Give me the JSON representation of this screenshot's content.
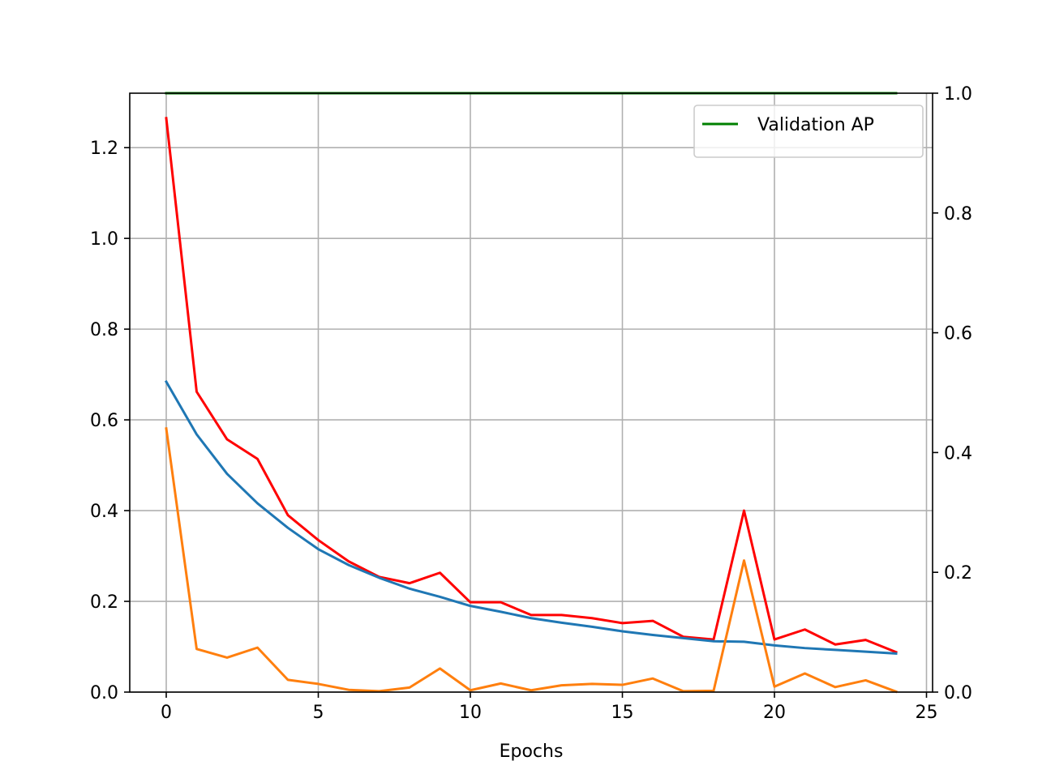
{
  "chart_data": {
    "type": "line",
    "xlabel": "Epochs",
    "ylabel": "",
    "xlim": [
      -1.2,
      25.2
    ],
    "ylim": [
      0,
      1.32
    ],
    "y2lim": [
      0,
      1.0
    ],
    "grid": true,
    "legend_position": "top-right",
    "xticks": [
      0,
      5,
      10,
      15,
      20,
      25
    ],
    "yticks": [
      0.0,
      0.2,
      0.4,
      0.6,
      0.8,
      1.0,
      1.2
    ],
    "y2ticks": [
      0.0,
      0.2,
      0.4,
      0.6,
      0.8,
      1.0
    ],
    "x": [
      0,
      1,
      2,
      3,
      4,
      5,
      6,
      7,
      8,
      9,
      10,
      11,
      12,
      13,
      14,
      15,
      16,
      17,
      18,
      19,
      20,
      21,
      22,
      23,
      24
    ],
    "series": [
      {
        "color": "#ff0000",
        "axis": "left",
        "values": [
          1.265,
          0.662,
          0.557,
          0.514,
          0.39,
          0.335,
          0.288,
          0.254,
          0.24,
          0.263,
          0.198,
          0.198,
          0.17,
          0.17,
          0.163,
          0.152,
          0.157,
          0.122,
          0.116,
          0.4,
          0.116,
          0.138,
          0.105,
          0.115,
          0.088
        ]
      },
      {
        "color": "#1f77b4",
        "axis": "left",
        "values": [
          0.684,
          0.568,
          0.481,
          0.416,
          0.362,
          0.315,
          0.28,
          0.252,
          0.228,
          0.21,
          0.19,
          0.177,
          0.163,
          0.153,
          0.144,
          0.134,
          0.126,
          0.119,
          0.112,
          0.111,
          0.103,
          0.097,
          0.093,
          0.089,
          0.085
        ]
      },
      {
        "color": "#ff7f0e",
        "axis": "left",
        "values": [
          0.581,
          0.095,
          0.076,
          0.098,
          0.027,
          0.018,
          0.005,
          0.002,
          0.01,
          0.052,
          0.004,
          0.019,
          0.004,
          0.015,
          0.018,
          0.016,
          0.03,
          0.002,
          0.003,
          0.29,
          0.012,
          0.041,
          0.011,
          0.026,
          0.001
        ]
      },
      {
        "name": "Validation AP",
        "color": "#008000",
        "axis": "right",
        "values": [
          1,
          1,
          1,
          1,
          1,
          1,
          1,
          1,
          1,
          1,
          1,
          1,
          1,
          1,
          1,
          1,
          1,
          1,
          1,
          1,
          1,
          1,
          1,
          1,
          1
        ]
      }
    ]
  }
}
